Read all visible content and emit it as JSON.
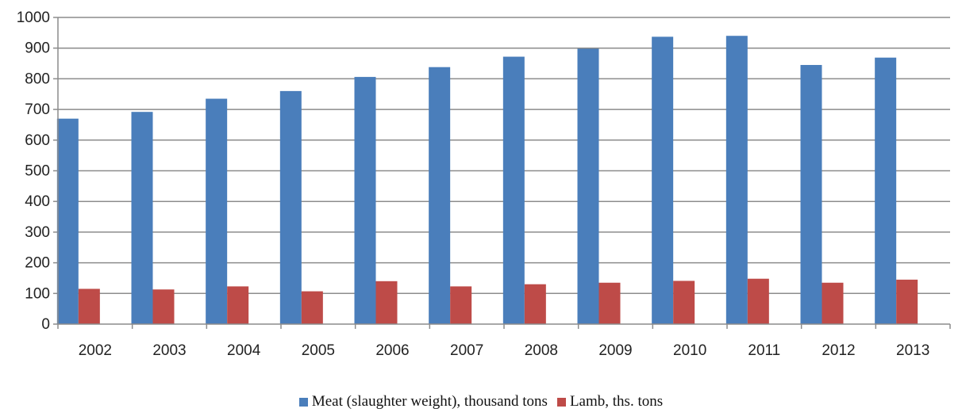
{
  "chart_data": {
    "type": "bar",
    "title": "",
    "xlabel": "",
    "ylabel": "",
    "ylim": [
      0,
      1000
    ],
    "ytick_step": 100,
    "grid": true,
    "legend_position": "bottom",
    "categories": [
      "2002",
      "2003",
      "2004",
      "2005",
      "2006",
      "2007",
      "2008",
      "2009",
      "2010",
      "2011",
      "2012",
      "2013"
    ],
    "series": [
      {
        "name": "Meat (slaughter weight), thousand tons",
        "color": "#4A7EBB",
        "values": [
          670,
          692,
          735,
          760,
          806,
          838,
          872,
          898,
          937,
          940,
          845,
          869
        ]
      },
      {
        "name": "Lamb, ths. tons",
        "color": "#BE4B48",
        "values": [
          115,
          113,
          123,
          107,
          140,
          123,
          130,
          135,
          141,
          148,
          135,
          145
        ]
      }
    ]
  }
}
